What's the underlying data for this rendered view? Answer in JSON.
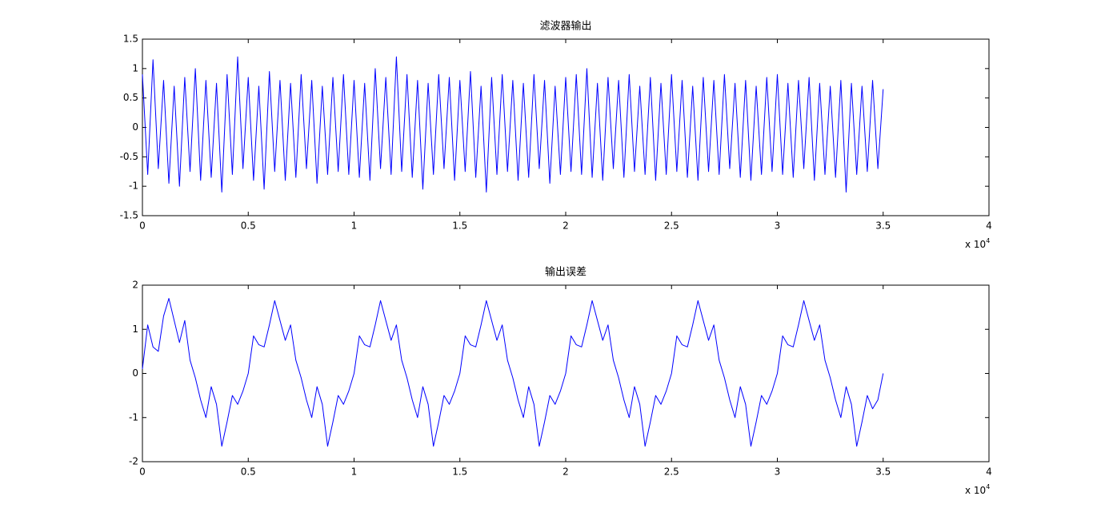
{
  "chart_data": [
    {
      "type": "line",
      "title": "滤波器输出",
      "x": [
        0,
        0.025,
        0.05,
        0.075,
        0.1,
        0.125,
        0.15,
        0.175,
        0.2,
        0.225,
        0.25,
        0.275,
        0.3,
        0.325,
        0.35,
        0.375,
        0.4,
        0.425,
        0.45,
        0.475,
        0.5,
        0.525,
        0.55,
        0.575,
        0.6,
        0.625,
        0.65,
        0.675,
        0.7,
        0.725,
        0.75,
        0.775,
        0.8,
        0.825,
        0.85,
        0.875,
        0.9,
        0.925,
        0.95,
        0.975,
        1,
        1.025,
        1.05,
        1.075,
        1.1,
        1.125,
        1.15,
        1.175,
        1.2,
        1.225,
        1.25,
        1.275,
        1.3,
        1.325,
        1.35,
        1.375,
        1.4,
        1.425,
        1.45,
        1.475,
        1.5,
        1.525,
        1.55,
        1.575,
        1.6,
        1.625,
        1.65,
        1.675,
        1.7,
        1.725,
        1.75,
        1.775,
        1.8,
        1.825,
        1.85,
        1.875,
        1.9,
        1.925,
        1.95,
        1.975,
        2,
        2.025,
        2.05,
        2.075,
        2.1,
        2.125,
        2.15,
        2.175,
        2.2,
        2.225,
        2.25,
        2.275,
        2.3,
        2.325,
        2.35,
        2.375,
        2.4,
        2.425,
        2.45,
        2.475,
        2.5,
        2.525,
        2.55,
        2.575,
        2.6,
        2.625,
        2.65,
        2.675,
        2.7,
        2.725,
        2.75,
        2.775,
        2.8,
        2.825,
        2.85,
        2.875,
        2.9,
        2.925,
        2.95,
        2.975,
        3,
        3.025,
        3.05,
        3.075,
        3.1,
        3.125,
        3.15,
        3.175,
        3.2,
        3.225,
        3.25,
        3.275,
        3.3,
        3.325,
        3.35,
        3.375,
        3.4,
        3.425,
        3.45,
        3.475,
        3.5
      ],
      "series": [
        {
          "color": "#0000ff",
          "values": [
            0.9,
            -0.8,
            1.15,
            -0.7,
            0.8,
            -0.95,
            0.7,
            -1.0,
            0.85,
            -0.75,
            1.0,
            -0.9,
            0.8,
            -0.85,
            0.75,
            -1.1,
            0.9,
            -0.8,
            1.2,
            -0.7,
            0.85,
            -0.9,
            0.7,
            -1.05,
            0.95,
            -0.75,
            0.8,
            -0.9,
            0.75,
            -0.85,
            0.9,
            -0.7,
            0.8,
            -0.95,
            0.7,
            -0.8,
            0.85,
            -0.75,
            0.9,
            -0.8,
            0.8,
            -0.85,
            0.75,
            -0.9,
            1.0,
            -0.7,
            0.85,
            -0.8,
            1.2,
            -0.75,
            0.9,
            -0.85,
            0.8,
            -1.05,
            0.75,
            -0.8,
            0.9,
            -0.7,
            0.85,
            -0.9,
            0.8,
            -0.75,
            0.95,
            -0.85,
            0.7,
            -1.1,
            0.85,
            -0.8,
            0.9,
            -0.75,
            0.8,
            -0.9,
            0.75,
            -0.85,
            0.9,
            -0.7,
            0.8,
            -0.95,
            0.7,
            -0.8,
            0.85,
            -0.75,
            0.9,
            -0.8,
            1.0,
            -0.85,
            0.75,
            -0.9,
            0.85,
            -0.7,
            0.8,
            -0.85,
            0.9,
            -0.75,
            0.7,
            -0.8,
            0.85,
            -0.9,
            0.75,
            -0.8,
            0.9,
            -0.75,
            0.8,
            -0.85,
            0.7,
            -0.9,
            0.85,
            -0.75,
            0.8,
            -0.8,
            0.9,
            -0.7,
            0.75,
            -0.85,
            0.8,
            -0.9,
            0.7,
            -0.8,
            0.85,
            -0.75,
            0.9,
            -0.8,
            0.75,
            -0.85,
            0.8,
            -0.7,
            0.85,
            -0.9,
            0.75,
            -0.8,
            0.7,
            -0.85,
            0.8,
            -1.1,
            0.75,
            -0.8,
            0.7,
            -0.75,
            0.8,
            -0.7,
            0.65
          ]
        }
      ],
      "xlim": [
        0,
        4
      ],
      "xticks": [
        0,
        0.5,
        1,
        1.5,
        2,
        2.5,
        3,
        3.5,
        4
      ],
      "ylim": [
        -1.5,
        1.5
      ],
      "yticks": [
        -1.5,
        -1,
        -0.5,
        0,
        0.5,
        1,
        1.5
      ],
      "x_multiplier": {
        "base": "x 10",
        "exponent": 4
      }
    },
    {
      "type": "line",
      "title": "输出误差",
      "x": [
        0,
        0.025,
        0.05,
        0.075,
        0.1,
        0.125,
        0.15,
        0.175,
        0.2,
        0.225,
        0.25,
        0.275,
        0.3,
        0.325,
        0.35,
        0.375,
        0.4,
        0.425,
        0.45,
        0.475,
        0.5,
        0.525,
        0.55,
        0.575,
        0.6,
        0.625,
        0.65,
        0.675,
        0.7,
        0.725,
        0.75,
        0.775,
        0.8,
        0.825,
        0.85,
        0.875,
        0.9,
        0.925,
        0.95,
        0.975,
        1,
        1.025,
        1.05,
        1.075,
        1.1,
        1.125,
        1.15,
        1.175,
        1.2,
        1.225,
        1.25,
        1.275,
        1.3,
        1.325,
        1.35,
        1.375,
        1.4,
        1.425,
        1.45,
        1.475,
        1.5,
        1.525,
        1.55,
        1.575,
        1.6,
        1.625,
        1.65,
        1.675,
        1.7,
        1.725,
        1.75,
        1.775,
        1.8,
        1.825,
        1.85,
        1.875,
        1.9,
        1.925,
        1.95,
        1.975,
        2,
        2.025,
        2.05,
        2.075,
        2.1,
        2.125,
        2.15,
        2.175,
        2.2,
        2.225,
        2.25,
        2.275,
        2.3,
        2.325,
        2.35,
        2.375,
        2.4,
        2.425,
        2.45,
        2.475,
        2.5,
        2.525,
        2.55,
        2.575,
        2.6,
        2.625,
        2.65,
        2.675,
        2.7,
        2.725,
        2.75,
        2.775,
        2.8,
        2.825,
        2.85,
        2.875,
        2.9,
        2.925,
        2.95,
        2.975,
        3,
        3.025,
        3.05,
        3.075,
        3.1,
        3.125,
        3.15,
        3.175,
        3.2,
        3.225,
        3.25,
        3.275,
        3.3,
        3.325,
        3.35,
        3.375,
        3.4,
        3.425,
        3.45,
        3.475,
        3.5
      ],
      "series": [
        {
          "color": "#0000ff",
          "values": [
            0.1,
            1.1,
            0.6,
            0.5,
            1.3,
            1.7,
            1.2,
            0.7,
            1.2,
            0.3,
            -0.1,
            -0.6,
            -1.0,
            -0.3,
            -0.7,
            -1.65,
            -1.1,
            -0.5,
            -0.7,
            -0.4,
            0.0,
            0.85,
            0.65,
            0.6,
            1.1,
            1.65,
            1.2,
            0.75,
            1.1,
            0.3,
            -0.1,
            -0.6,
            -1.0,
            -0.3,
            -0.7,
            -1.65,
            -1.1,
            -0.5,
            -0.7,
            -0.4,
            0.0,
            0.85,
            0.65,
            0.6,
            1.1,
            1.65,
            1.2,
            0.75,
            1.1,
            0.3,
            -0.1,
            -0.6,
            -1.0,
            -0.3,
            -0.7,
            -1.65,
            -1.1,
            -0.5,
            -0.7,
            -0.4,
            0.0,
            0.85,
            0.65,
            0.6,
            1.1,
            1.65,
            1.2,
            0.75,
            1.1,
            0.3,
            -0.1,
            -0.6,
            -1.0,
            -0.3,
            -0.7,
            -1.65,
            -1.1,
            -0.5,
            -0.7,
            -0.4,
            0.0,
            0.85,
            0.65,
            0.6,
            1.1,
            1.65,
            1.2,
            0.75,
            1.1,
            0.3,
            -0.1,
            -0.6,
            -1.0,
            -0.3,
            -0.7,
            -1.65,
            -1.1,
            -0.5,
            -0.7,
            -0.4,
            0.0,
            0.85,
            0.65,
            0.6,
            1.1,
            1.65,
            1.2,
            0.75,
            1.1,
            0.3,
            -0.1,
            -0.6,
            -1.0,
            -0.3,
            -0.7,
            -1.65,
            -1.1,
            -0.5,
            -0.7,
            -0.4,
            0.0,
            0.85,
            0.65,
            0.6,
            1.1,
            1.65,
            1.2,
            0.75,
            1.1,
            0.3,
            -0.1,
            -0.6,
            -1.0,
            -0.3,
            -0.7,
            -1.65,
            -1.1,
            -0.5,
            -0.8,
            -0.6,
            0.0
          ]
        }
      ],
      "xlim": [
        0,
        4
      ],
      "xticks": [
        0,
        0.5,
        1,
        1.5,
        2,
        2.5,
        3,
        3.5,
        4
      ],
      "ylim": [
        -2,
        2
      ],
      "yticks": [
        -2,
        -1,
        0,
        1,
        2
      ],
      "x_multiplier": {
        "base": "x 10",
        "exponent": 4
      }
    }
  ]
}
